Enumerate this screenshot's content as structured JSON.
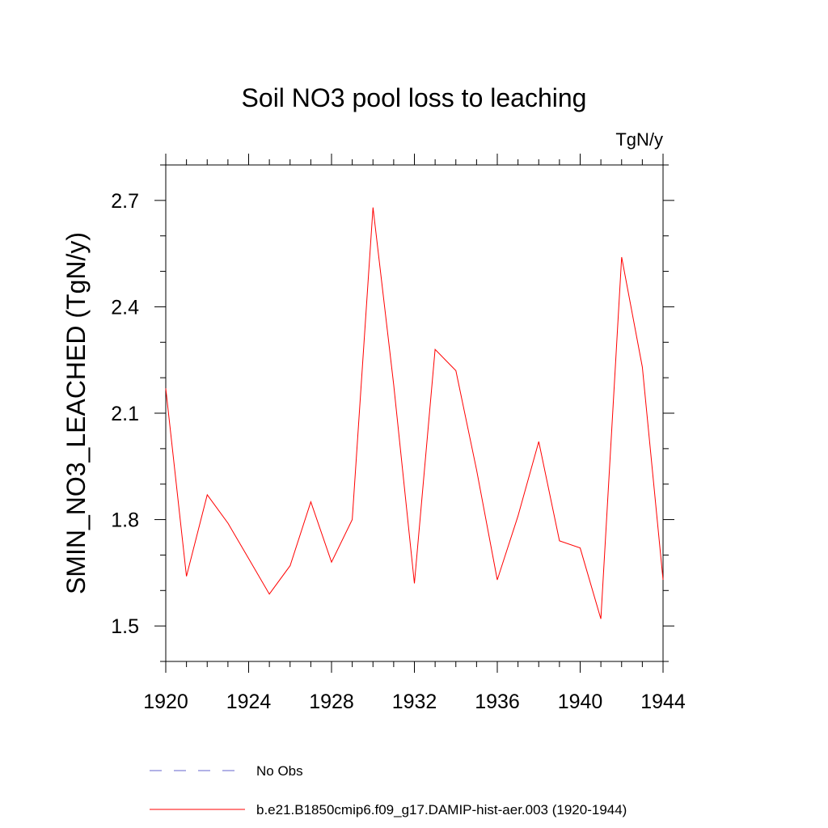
{
  "chart_data": {
    "type": "line",
    "title": "Soil NO3 pool loss to leaching",
    "units_label": "TgN/y",
    "ylabel": "SMIN_NO3_LEACHED  (TgN/y)",
    "xlabel": "",
    "xlim": [
      1920,
      1944
    ],
    "ylim": [
      1.4,
      2.8
    ],
    "x_ticks": [
      1920,
      1924,
      1928,
      1932,
      1936,
      1940,
      1944
    ],
    "y_ticks": [
      1.5,
      1.8,
      2.1,
      2.4,
      2.7
    ],
    "y_tick_labels": [
      "1.5",
      "1.8",
      "2.1",
      "2.4",
      "2.7"
    ],
    "series": [
      {
        "name": "b.e21.B1850cmip6.f09_g17.DAMIP-hist-aer.003 (1920-1944)",
        "color": "#ff0000",
        "x": [
          1920,
          1921,
          1922,
          1923,
          1924,
          1925,
          1926,
          1927,
          1928,
          1929,
          1930,
          1931,
          1932,
          1933,
          1934,
          1935,
          1936,
          1937,
          1938,
          1939,
          1940,
          1941,
          1942,
          1943,
          1944
        ],
        "y": [
          2.17,
          1.64,
          1.87,
          1.79,
          1.69,
          1.59,
          1.67,
          1.85,
          1.68,
          1.8,
          2.68,
          2.18,
          1.62,
          2.28,
          2.22,
          1.94,
          1.63,
          1.81,
          2.02,
          1.74,
          1.72,
          1.52,
          2.54,
          2.23,
          1.63
        ]
      }
    ],
    "legend": {
      "placement": "bottom-left",
      "entries": [
        {
          "label": "No Obs",
          "style": "dashed",
          "color": "#6666cc"
        },
        {
          "label": "b.e21.B1850cmip6.f09_g17.DAMIP-hist-aer.003 (1920-1944)",
          "style": "solid",
          "color": "#ff0000"
        }
      ]
    },
    "grid": false
  }
}
